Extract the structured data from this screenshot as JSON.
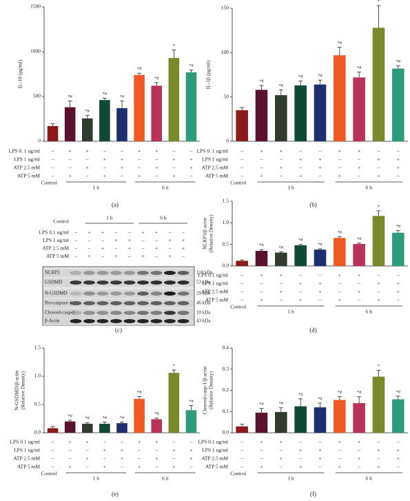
{
  "chart_data": [
    {
      "type": "bar",
      "panel": "(a)",
      "ylabel": [
        "IL-18 (pg/ml)"
      ],
      "categories": [
        null,
        null,
        null,
        null,
        null,
        null,
        null,
        null,
        null
      ],
      "values": [
        170,
        380,
        255,
        460,
        370,
        740,
        620,
        930,
        770
      ],
      "errors": [
        25,
        70,
        35,
        20,
        80,
        20,
        35,
        90,
        25
      ],
      "annotations": [
        null,
        "*#",
        "*#",
        "*#",
        "*#",
        "*#",
        "*#",
        "*",
        "*#"
      ],
      "colors": [
        "#8b1a1a",
        "#5a1230",
        "#2f3b2c",
        "#0f4a36",
        "#1d2f6f",
        "#f05a22",
        "#b8325a",
        "#7a8a2a",
        "#2e9c7c"
      ],
      "ylim": [
        0,
        1500
      ],
      "yticks": [
        0,
        500,
        1000,
        1500
      ],
      "conditions": [
        {
          "label": "LPS 0. 1 ug/ml",
          "signs": [
            "–",
            "+",
            "+",
            "–",
            "–",
            "+",
            "+",
            "–",
            "–"
          ]
        },
        {
          "label": "LPS 1 ug/ml",
          "signs": [
            "–",
            "–",
            "–",
            "+",
            "+",
            "–",
            "–",
            "+",
            "+"
          ]
        },
        {
          "label": "ATP 2.5 mM",
          "signs": [
            "–",
            "–",
            "+",
            "–",
            "+",
            "–",
            "+",
            "–",
            "+"
          ]
        },
        {
          "label": "ATP 5 mM",
          "signs": [
            "–",
            "+",
            "–",
            "+",
            "–",
            "+",
            "–",
            "+",
            "–"
          ]
        }
      ],
      "groups": [
        "Control",
        "1 h",
        "6 h"
      ]
    },
    {
      "type": "bar",
      "panel": "(b)",
      "ylabel": [
        "IL-1β (pg/ml)"
      ],
      "categories": [
        null,
        null,
        null,
        null,
        null,
        null,
        null,
        null,
        null
      ],
      "values": [
        35,
        58,
        52,
        63,
        64,
        97,
        72,
        128,
        82
      ],
      "errors": [
        3,
        5,
        6,
        5,
        5,
        9,
        6,
        25,
        3
      ],
      "annotations": [
        null,
        "*#",
        "*#",
        "*#",
        "*#",
        "*#",
        "*#",
        "*",
        "*#"
      ],
      "colors": [
        "#8b1a1a",
        "#5a1230",
        "#2f3b2c",
        "#0f4a36",
        "#1d2f6f",
        "#f05a22",
        "#b8325a",
        "#7a8a2a",
        "#2e9c7c"
      ],
      "ylim": [
        0,
        150
      ],
      "yticks": [
        0,
        50,
        100,
        150
      ],
      "conditions": [
        {
          "label": "LPS 0. 1 ug/ml",
          "signs": [
            "–",
            "+",
            "+",
            "–",
            "–",
            "+",
            "+",
            "–",
            "–"
          ]
        },
        {
          "label": "LPS 1 ug/ml",
          "signs": [
            "–",
            "–",
            "–",
            "+",
            "+",
            "–",
            "–",
            "+",
            "+"
          ]
        },
        {
          "label": "ATP 2.5 mM",
          "signs": [
            "–",
            "–",
            "+",
            "–",
            "+",
            "–",
            "+",
            "–",
            "+"
          ]
        },
        {
          "label": "ATP 5 mM",
          "signs": [
            "–",
            "+",
            "–",
            "+",
            "–",
            "+",
            "–",
            "+",
            "–"
          ]
        }
      ],
      "groups": [
        "Control",
        "1 h",
        "6 h"
      ]
    },
    {
      "type": "bar",
      "panel": "(d)",
      "ylabel": [
        "NLRP3/β-actin",
        "(Relative Density)"
      ],
      "categories": [
        null,
        null,
        null,
        null,
        null,
        null,
        null,
        null,
        null
      ],
      "values": [
        0.12,
        0.35,
        0.31,
        0.48,
        0.38,
        0.65,
        0.51,
        1.16,
        0.77
      ],
      "errors": [
        0.02,
        0.03,
        0.02,
        0.02,
        0.02,
        0.03,
        0.02,
        0.12,
        0.05
      ],
      "annotations": [
        null,
        "*#",
        "*#",
        "*#",
        "*#",
        "*#",
        "*#",
        "*",
        "*#"
      ],
      "colors": [
        "#8b1a1a",
        "#5a1230",
        "#2f3b2c",
        "#0f4a36",
        "#1d2f6f",
        "#f05a22",
        "#b8325a",
        "#7a8a2a",
        "#2e9c7c"
      ],
      "ylim": [
        0,
        1.5
      ],
      "yticks": [
        {
          "value": 0,
          "label": "0.0"
        },
        0.5,
        {
          "value": 1,
          "label": "1.0"
        },
        1.5
      ],
      "conditions": [
        {
          "label": "LPS 0.1 ug/ml",
          "signs": [
            "–",
            "+",
            "+",
            "–",
            "–",
            "+",
            "+",
            "–",
            "–"
          ]
        },
        {
          "label": "LPS 1 ug/ml",
          "signs": [
            "–",
            "–",
            "–",
            "+",
            "+",
            "–",
            "–",
            "+",
            "+"
          ]
        },
        {
          "label": "ATP 2.5 mM",
          "signs": [
            "–",
            "–",
            "+",
            "–",
            "+",
            "–",
            "+",
            "–",
            "+"
          ]
        },
        {
          "label": "ATP 5 mM",
          "signs": [
            "–",
            "+",
            "–",
            "+",
            "–",
            "+",
            "–",
            "+",
            "–"
          ]
        }
      ],
      "groups": [
        "Control",
        "1 h",
        "6 h"
      ]
    },
    {
      "type": "bar",
      "panel": "(e)",
      "ylabel": [
        "N-GSDMD/β-actin",
        "(Relative Density)"
      ],
      "categories": [
        null,
        null,
        null,
        null,
        null,
        null,
        null,
        null,
        null
      ],
      "values": [
        0.08,
        0.2,
        0.16,
        0.16,
        0.17,
        0.6,
        0.24,
        1.06,
        0.4
      ],
      "errors": [
        0.03,
        0.02,
        0.02,
        0.03,
        0.02,
        0.04,
        0.02,
        0.05,
        0.08
      ],
      "annotations": [
        null,
        "*#",
        "*#",
        "*#",
        "*#",
        "*#",
        "*#",
        "*",
        "*#"
      ],
      "colors": [
        "#8b1a1a",
        "#5a1230",
        "#2f3b2c",
        "#0f4a36",
        "#1d2f6f",
        "#f05a22",
        "#b8325a",
        "#7a8a2a",
        "#2e9c7c"
      ],
      "ylim": [
        0,
        1.5
      ],
      "yticks": [
        {
          "value": 0,
          "label": "0.0"
        },
        0.5,
        {
          "value": 1,
          "label": "1.0"
        },
        1.5
      ],
      "conditions": [
        {
          "label": "LPS 0.1 ug/ml",
          "signs": [
            "–",
            "+",
            "+",
            "–",
            "–",
            "+",
            "+",
            "–",
            "–"
          ]
        },
        {
          "label": "LPS 1 ug/ml",
          "signs": [
            "–",
            "–",
            "–",
            "+",
            "+",
            "–",
            "–",
            "+",
            "+"
          ]
        },
        {
          "label": "ATP 2.5 mM",
          "signs": [
            "–",
            "–",
            "+",
            "–",
            "+",
            "–",
            "+",
            "–",
            "+"
          ]
        },
        {
          "label": "ATP 5 mM",
          "signs": [
            "–",
            "+",
            "–",
            "+",
            "–",
            "+",
            "–",
            "+",
            "–"
          ]
        }
      ],
      "groups": [
        "Control",
        "1 h",
        "6 h"
      ]
    },
    {
      "type": "bar",
      "panel": "(f)",
      "ylabel": [
        "Cleaved-casp-1/β-actin",
        "(Relative Density)"
      ],
      "categories": [
        null,
        null,
        null,
        null,
        null,
        null,
        null,
        null,
        null
      ],
      "values": [
        0.03,
        0.095,
        0.098,
        0.125,
        0.12,
        0.155,
        0.14,
        0.265,
        0.158
      ],
      "errors": [
        0.01,
        0.02,
        0.02,
        0.035,
        0.02,
        0.015,
        0.03,
        0.03,
        0.015
      ],
      "annotations": [
        null,
        "*#",
        "*#",
        "*#",
        "*#",
        "*#",
        "*#",
        "*",
        "*#"
      ],
      "colors": [
        "#8b1a1a",
        "#5a1230",
        "#2f3b2c",
        "#0f4a36",
        "#1d2f6f",
        "#f05a22",
        "#b8325a",
        "#7a8a2a",
        "#2e9c7c"
      ],
      "ylim": [
        0,
        0.4
      ],
      "yticks": [
        {
          "value": 0,
          "label": "0.0"
        },
        0.1,
        0.2,
        0.3,
        0.4
      ],
      "conditions": [
        {
          "label": "LPS 0.1 ug/ml",
          "signs": [
            "–",
            "+",
            "+",
            "–",
            "–",
            "+",
            "+",
            "–",
            "–"
          ]
        },
        {
          "label": "LPS 1 ug/ml",
          "signs": [
            "–",
            "–",
            "–",
            "+",
            "+",
            "–",
            "–",
            "+",
            "+"
          ]
        },
        {
          "label": "ATP 2.5 mM",
          "signs": [
            "–",
            "–",
            "+",
            "–",
            "+",
            "–",
            "+",
            "–",
            "+"
          ]
        },
        {
          "label": "ATP 5 mM",
          "signs": [
            "–",
            "+",
            "–",
            "+",
            "–",
            "+",
            "–",
            "+",
            "–"
          ]
        }
      ],
      "groups": [
        "Control",
        "1 h",
        "6 h"
      ]
    }
  ],
  "blot": {
    "panel": "(c)",
    "groups": [
      "Control",
      "1 h",
      "6 h"
    ],
    "conditions": [
      {
        "label": "LPS 0.1 ug/ml",
        "signs": [
          "–",
          "+",
          "+",
          "–",
          "–",
          "+",
          "+",
          "–",
          "–"
        ]
      },
      {
        "label": "LPS 1 ug/ml",
        "signs": [
          "–",
          "–",
          "–",
          "+",
          "+",
          "–",
          "–",
          "+",
          "+"
        ]
      },
      {
        "label": "ATP 2.5 mM",
        "signs": [
          "–",
          "–",
          "+",
          "–",
          "+",
          "–",
          "+",
          "–",
          "+"
        ]
      },
      {
        "label": "ATP 5 mM",
        "signs": [
          "–",
          "+",
          "–",
          "+",
          "–",
          "+",
          "–",
          "+",
          "–"
        ]
      }
    ],
    "proteins": [
      {
        "name": "NLRP3",
        "kda": "118 kDa"
      },
      {
        "name": "GSDMD",
        "kda": "53 kDa"
      },
      {
        "name": "N-GSDMD",
        "kda": "29 kDa"
      },
      {
        "name": "Pro-caspase-1",
        "kda": "46 kDa"
      },
      {
        "name": "Cleaved-casp-1",
        "kda": "10 kDa"
      },
      {
        "name": "β-Actin",
        "kda": "43 kDa"
      }
    ]
  }
}
